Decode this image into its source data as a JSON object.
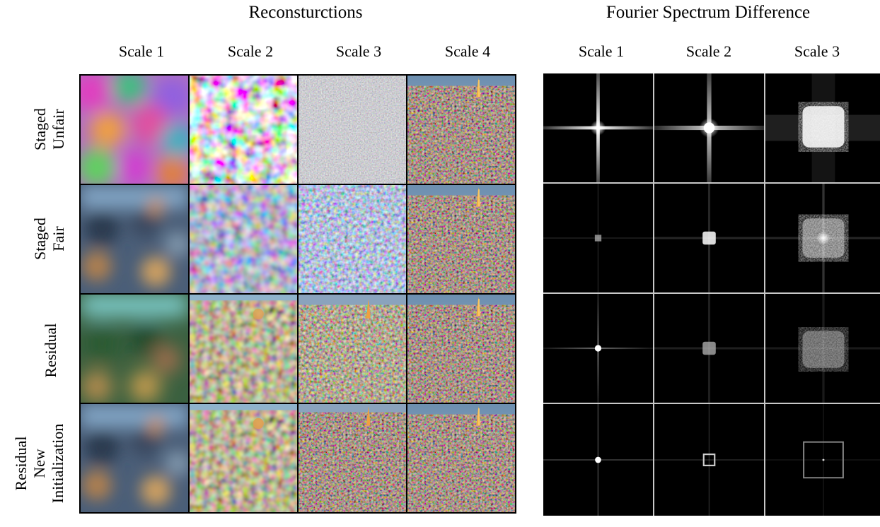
{
  "headers": {
    "reconstructions_title": "Reconsturctions",
    "spectrum_title": "Fourier Spectrum Difference"
  },
  "recon_columns": [
    "Scale 1",
    "Scale 2",
    "Scale 3",
    "Scale 4"
  ],
  "spectrum_columns": [
    "Scale 1",
    "Scale 2",
    "Scale 3"
  ],
  "rows": [
    {
      "line1": "Staged",
      "line2": "Unfair",
      "line3": ""
    },
    {
      "line1": "Staged",
      "line2": "Fair",
      "line3": ""
    },
    {
      "line1": "Residual",
      "line2": "",
      "line3": ""
    },
    {
      "line1": "Residual",
      "line2": "New",
      "line3": "Initialization"
    }
  ],
  "colors": {
    "background": "#ffffff",
    "grid_border": "#000000",
    "spectrum_divider": "#c8c8c8",
    "spectrum_bg": "#000000",
    "city_sky": "#6d8fb0",
    "city_lights": "#f0b040"
  }
}
